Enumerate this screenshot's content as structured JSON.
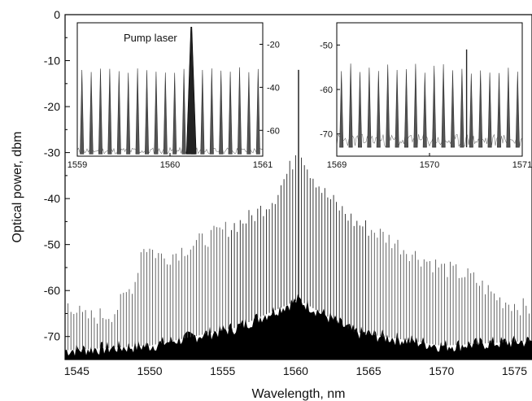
{
  "chart_data": [
    {
      "id": "main",
      "type": "line",
      "xlabel": "Wavelength, nm",
      "ylabel": "Optical power, dbm",
      "xlim": [
        1544.2,
        1576.2
      ],
      "ylim": [
        -75,
        0
      ],
      "xticks": [
        1545,
        1550,
        1555,
        1560,
        1565,
        1570,
        1575
      ],
      "yticks": [
        0,
        -10,
        -20,
        -30,
        -40,
        -50,
        -60,
        -70
      ],
      "grid": false,
      "comb": {
        "center_nm": 1560.2,
        "spacing_nm": 0.2,
        "pump_peak_dbm": -12,
        "peak_envelope": [
          {
            "x": 1544.3,
            "y": -62
          },
          {
            "x": 1545.5,
            "y": -66
          },
          {
            "x": 1547.5,
            "y": -65
          },
          {
            "x": 1549.0,
            "y": -58
          },
          {
            "x": 1549.5,
            "y": -50
          },
          {
            "x": 1551.0,
            "y": -53
          },
          {
            "x": 1553.0,
            "y": -50
          },
          {
            "x": 1555.0,
            "y": -47
          },
          {
            "x": 1557.0,
            "y": -44
          },
          {
            "x": 1558.5,
            "y": -40
          },
          {
            "x": 1559.7,
            "y": -33
          },
          {
            "x": 1560.2,
            "y": -28
          },
          {
            "x": 1560.8,
            "y": -33
          },
          {
            "x": 1562.0,
            "y": -39
          },
          {
            "x": 1564.0,
            "y": -45
          },
          {
            "x": 1566.0,
            "y": -48
          },
          {
            "x": 1568.0,
            "y": -52
          },
          {
            "x": 1570.0,
            "y": -55
          },
          {
            "x": 1572.0,
            "y": -57
          },
          {
            "x": 1574.0,
            "y": -62
          },
          {
            "x": 1576.0,
            "y": -64
          }
        ],
        "noise_floor": [
          {
            "x": 1544.3,
            "y": -73
          },
          {
            "x": 1550.0,
            "y": -72
          },
          {
            "x": 1556.0,
            "y": -68
          },
          {
            "x": 1560.2,
            "y": -62
          },
          {
            "x": 1564.0,
            "y": -69
          },
          {
            "x": 1570.0,
            "y": -72
          },
          {
            "x": 1576.0,
            "y": -71
          }
        ]
      }
    },
    {
      "id": "inset-left",
      "type": "line",
      "annotation": "Pump laser",
      "xlim": [
        1559,
        1561
      ],
      "ylim": [
        -72,
        -10
      ],
      "xticks": [
        1559,
        1560,
        1561
      ],
      "yticks": [
        -20,
        -40,
        -60
      ],
      "yaxis_side": "right",
      "lines": {
        "first_nm": 1559.05,
        "spacing_nm": 0.1,
        "count": 20,
        "peak_dbm": -32,
        "pump_nm": 1560.23,
        "pump_peak_dbm": -12,
        "floor_dbm": -71
      }
    },
    {
      "id": "inset-right",
      "type": "line",
      "xlim": [
        1569,
        1571
      ],
      "ylim": [
        -75,
        -45
      ],
      "xticks": [
        1569,
        1570,
        1571
      ],
      "yticks": [
        -50,
        -60,
        -70
      ],
      "yaxis_side": "left",
      "lines": {
        "first_nm": 1569.05,
        "spacing_nm": 0.1,
        "count": 20,
        "peak_dbm": -55,
        "tall_nm": 1570.4,
        "tall_peak_dbm": -51,
        "floor_dbm": -73
      }
    }
  ]
}
